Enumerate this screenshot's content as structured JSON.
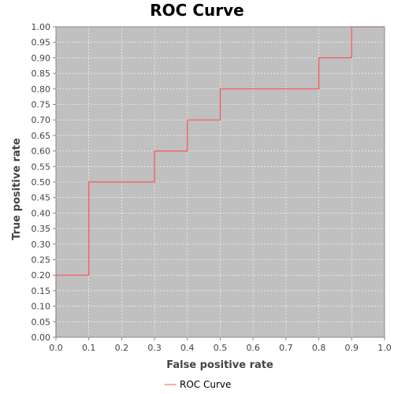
{
  "chart_data": {
    "type": "line",
    "title": "ROC Curve",
    "xlabel": "False positive rate",
    "ylabel": "True positive rate",
    "xlim": [
      0.0,
      1.0
    ],
    "ylim": [
      0.0,
      1.0
    ],
    "x_ticks": [
      "0.0",
      "0.1",
      "0.2",
      "0.3",
      "0.4",
      "0.5",
      "0.6",
      "0.7",
      "0.8",
      "0.9",
      "1.0"
    ],
    "y_ticks": [
      "0.00",
      "0.05",
      "0.10",
      "0.15",
      "0.20",
      "0.25",
      "0.30",
      "0.35",
      "0.40",
      "0.45",
      "0.50",
      "0.55",
      "0.60",
      "0.65",
      "0.70",
      "0.75",
      "0.80",
      "0.85",
      "0.90",
      "0.95",
      "1.00"
    ],
    "grid": true,
    "legend_position": "bottom-center",
    "background_color": "#c0c0c0",
    "series": [
      {
        "name": "ROC Curve",
        "color": "#ff5555",
        "x": [
          0.0,
          0.0,
          0.1,
          0.1,
          0.3,
          0.3,
          0.4,
          0.4,
          0.5,
          0.5,
          0.8,
          0.8,
          0.9,
          0.9,
          1.0
        ],
        "y": [
          0.0,
          0.2,
          0.2,
          0.5,
          0.5,
          0.6,
          0.6,
          0.7,
          0.7,
          0.8,
          0.8,
          0.9,
          0.9,
          1.0,
          1.0
        ]
      }
    ]
  }
}
